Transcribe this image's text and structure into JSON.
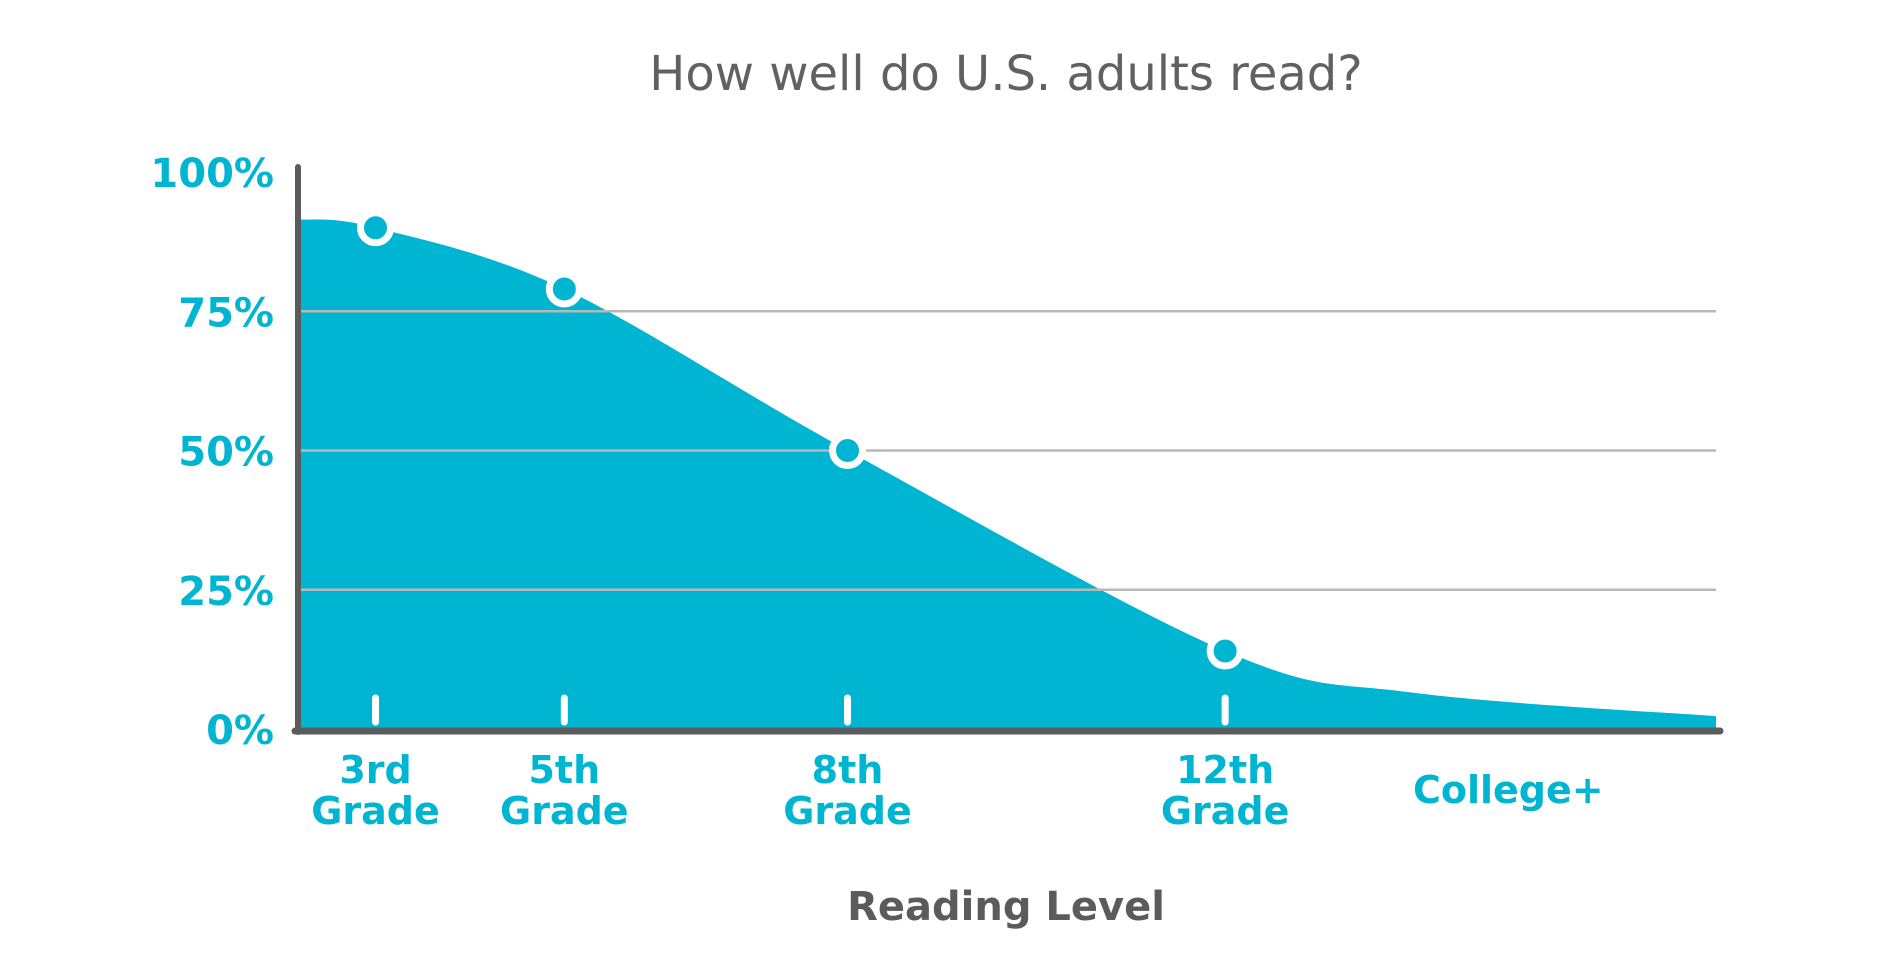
{
  "chart_data": {
    "type": "area",
    "title": "How well do U.S. adults read?",
    "xlabel": "Reading Level",
    "ylabel": "",
    "ylim": [
      0,
      100
    ],
    "yticks": [
      "0%",
      "25%",
      "50%",
      "75%",
      "100%"
    ],
    "ytick_values": [
      0,
      25,
      50,
      75,
      100
    ],
    "grid": "horizontal",
    "categories": [
      {
        "label_lines": [
          "3rd",
          "Grade"
        ],
        "x": 3
      },
      {
        "label_lines": [
          "5th",
          "Grade"
        ],
        "x": 5
      },
      {
        "label_lines": [
          "8th",
          "Grade"
        ],
        "x": 8
      },
      {
        "label_lines": [
          "12th",
          "Grade"
        ],
        "x": 12
      },
      {
        "label_lines": [
          "College+"
        ],
        "x": 15
      }
    ],
    "markers": [
      {
        "x": 3,
        "y": 90
      },
      {
        "x": 5,
        "y": 79
      },
      {
        "x": 8,
        "y": 50
      },
      {
        "x": 12,
        "y": 14
      }
    ],
    "curve": [
      {
        "x": 2.2,
        "y": 91.5
      },
      {
        "x": 3,
        "y": 90
      },
      {
        "x": 5,
        "y": 79
      },
      {
        "x": 8,
        "y": 50
      },
      {
        "x": 12,
        "y": 14
      },
      {
        "x": 14,
        "y": 6.5
      },
      {
        "x": 17.2,
        "y": 2.3
      }
    ],
    "x_range": [
      2.2,
      17.2
    ],
    "colors": {
      "fill": "#00b5d1",
      "axis": "#5b5b5b",
      "grid": "#b8b8b8",
      "marker_stroke": "#ffffff",
      "tick": "#ffffff",
      "title": "#616161"
    }
  }
}
